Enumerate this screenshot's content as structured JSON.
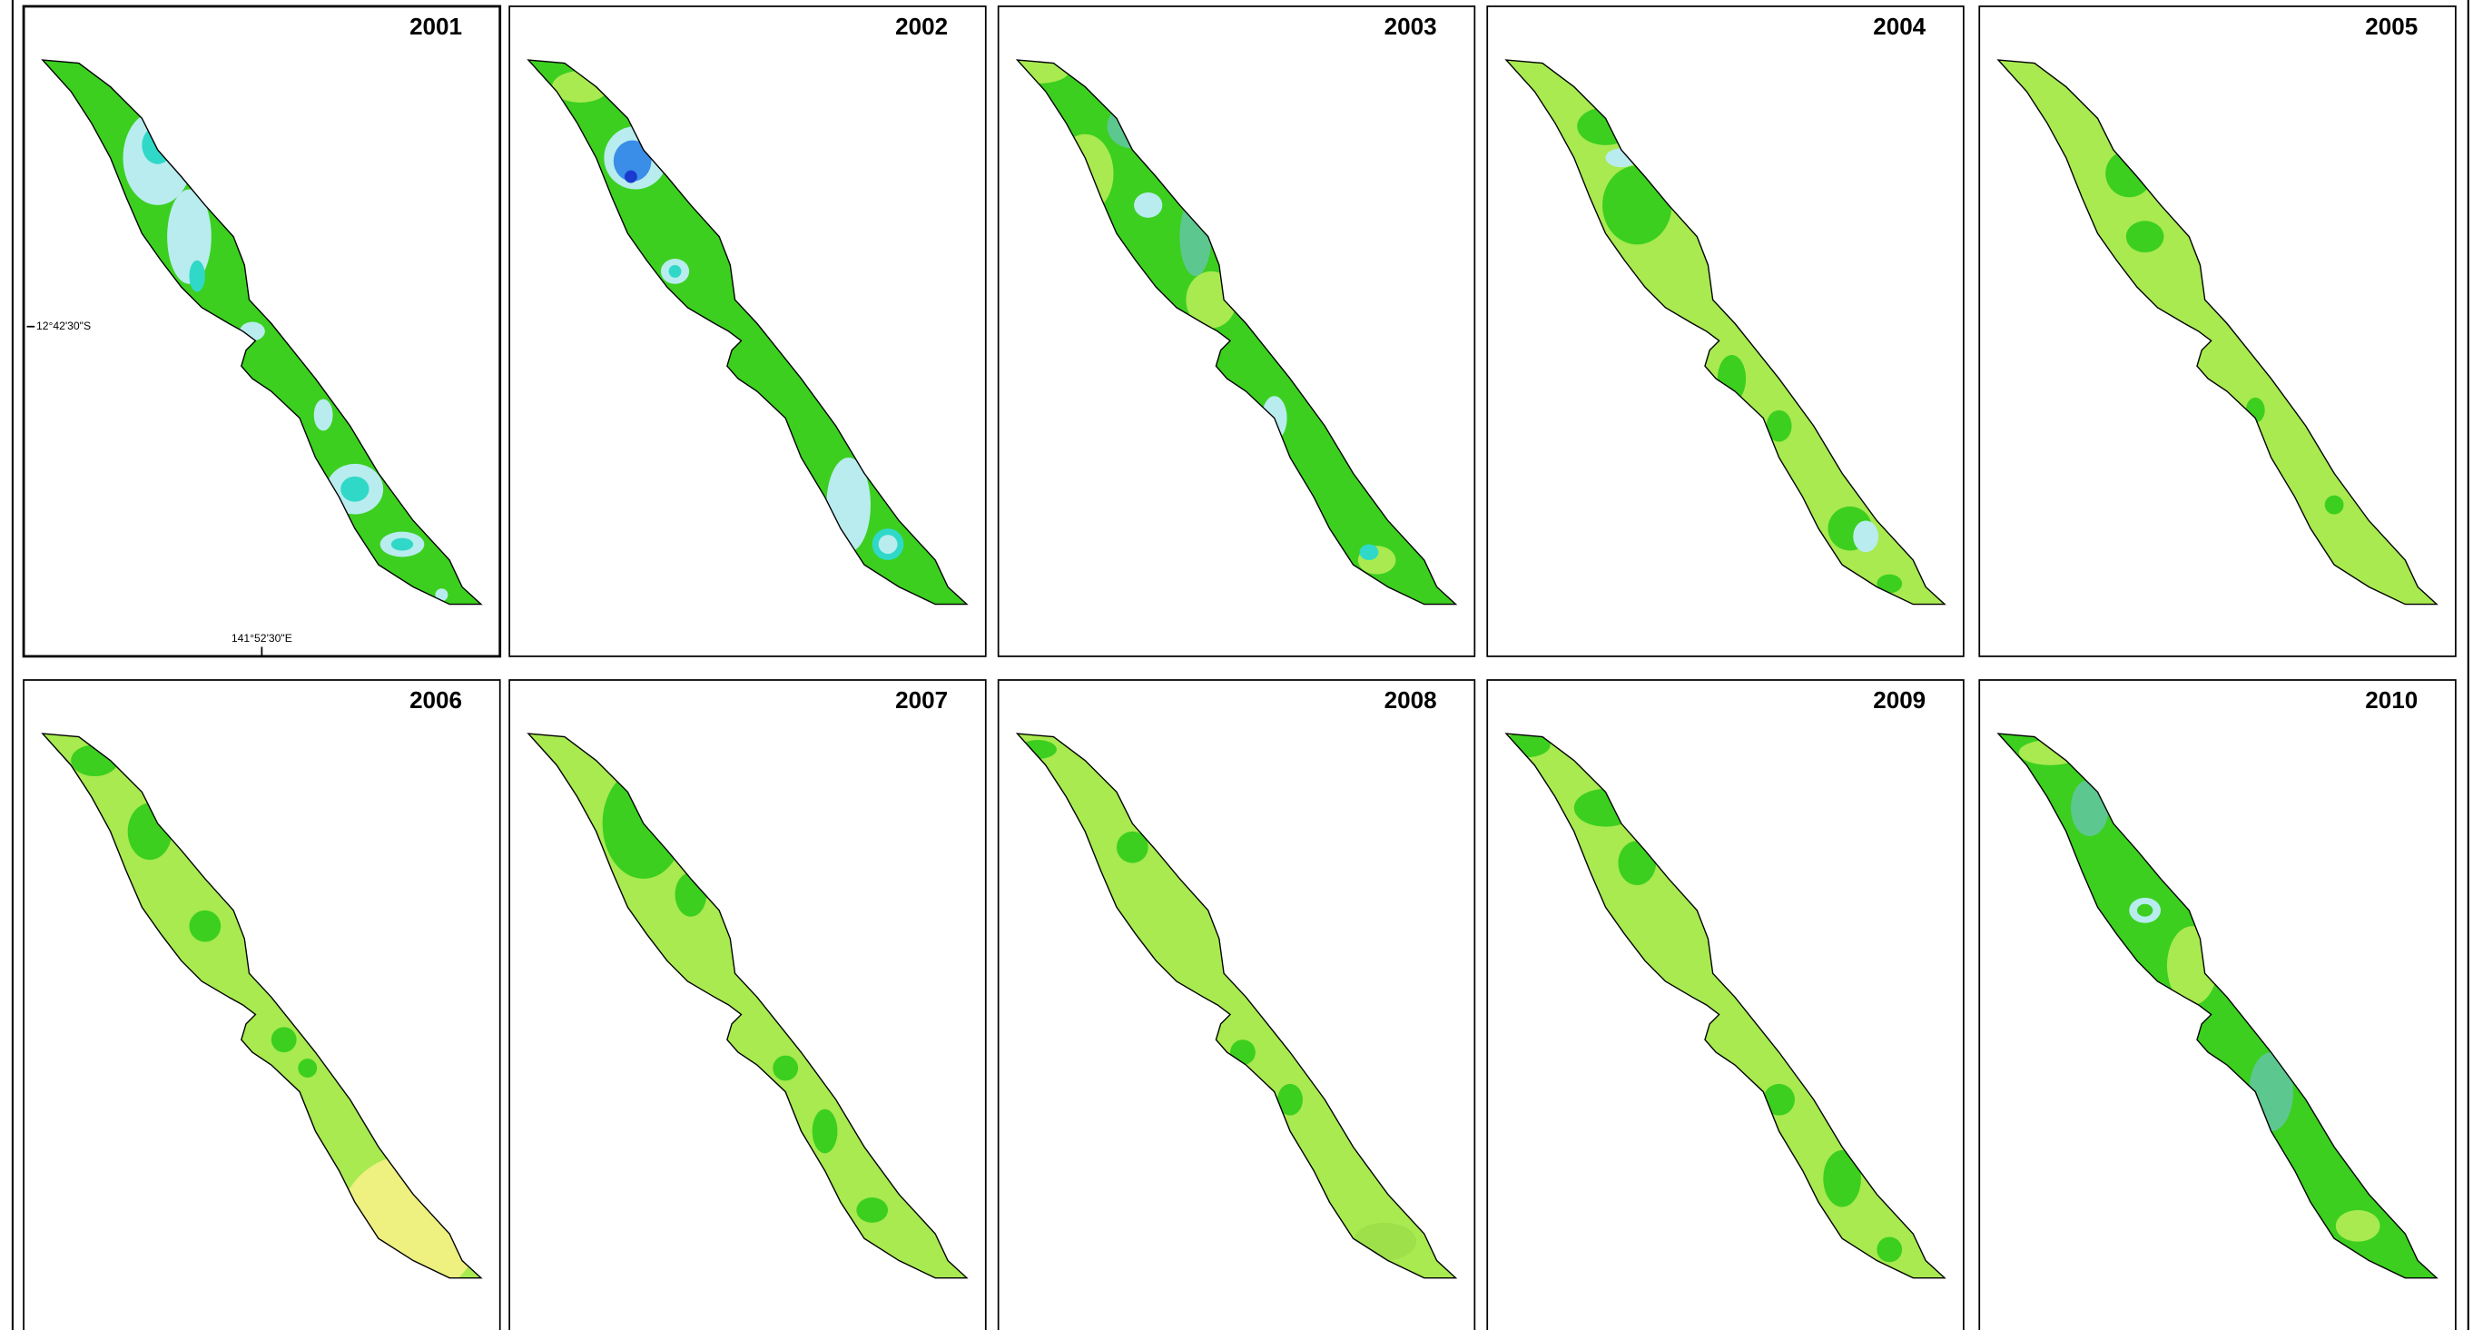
{
  "panels": [
    {
      "year": "2001"
    },
    {
      "year": "2002"
    },
    {
      "year": "2003"
    },
    {
      "year": "2004"
    },
    {
      "year": "2005"
    },
    {
      "year": "2006"
    },
    {
      "year": "2007"
    },
    {
      "year": "2008"
    },
    {
      "year": "2009"
    },
    {
      "year": "2010"
    }
  ],
  "axis_labels": {
    "latitude": "12°42'30\"S",
    "longitude": "141°52'30\"E"
  }
}
